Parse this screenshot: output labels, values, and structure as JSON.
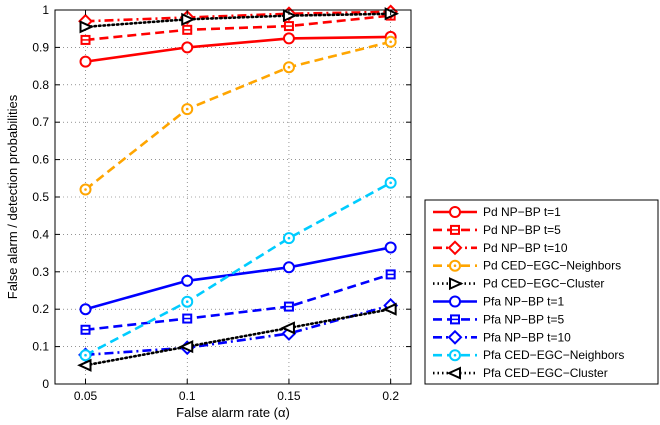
{
  "chart_data": {
    "type": "line",
    "xlabel": "False alarm rate (α)",
    "ylabel": "False alarm / detection probabilities",
    "xlim": [
      0.035,
      0.21
    ],
    "ylim": [
      0,
      1
    ],
    "x": [
      0.05,
      0.1,
      0.15,
      0.2
    ],
    "x_ticks": [
      "0.05",
      "0.1",
      "0.15",
      "0.2"
    ],
    "y_ticks": [
      "0",
      "0.1",
      "0.2",
      "0.3",
      "0.4",
      "0.5",
      "0.6",
      "0.7",
      "0.8",
      "0.9",
      "1"
    ],
    "grid": "dotted",
    "legend_position": "outside-right",
    "series": [
      {
        "name": "Pd NP−BP t=1",
        "values": [
          0.862,
          0.9,
          0.924,
          0.928
        ],
        "color": "#ff0000",
        "dash": "solid",
        "marker": "circle"
      },
      {
        "name": "Pd NP−BP t=5",
        "values": [
          0.92,
          0.947,
          0.957,
          0.985
        ],
        "color": "#ff0000",
        "dash": "dashed",
        "marker": "square"
      },
      {
        "name": "Pd NP−BP t=10",
        "values": [
          0.97,
          0.98,
          0.99,
          0.995
        ],
        "color": "#ff0000",
        "dash": "dashdot",
        "marker": "diamond"
      },
      {
        "name": "Pd CED−EGC−Neighbors",
        "values": [
          0.52,
          0.735,
          0.847,
          0.915
        ],
        "color": "#ffa500",
        "dash": "dashed",
        "marker": "circle-dot"
      },
      {
        "name": "Pd CED−EGC−Cluster",
        "values": [
          0.955,
          0.975,
          0.985,
          0.99
        ],
        "color": "#000000",
        "dash": "dotted",
        "marker": "triangle-right"
      },
      {
        "name": "Pfa NP−BP t=1",
        "values": [
          0.2,
          0.276,
          0.312,
          0.365
        ],
        "color": "#0000ff",
        "dash": "solid",
        "marker": "circle"
      },
      {
        "name": "Pfa NP−BP t=5",
        "values": [
          0.145,
          0.175,
          0.207,
          0.293
        ],
        "color": "#0000ff",
        "dash": "dashed",
        "marker": "square"
      },
      {
        "name": "Pfa NP−BP t=10",
        "values": [
          0.078,
          0.097,
          0.135,
          0.21
        ],
        "color": "#0000ff",
        "dash": "dashdot",
        "marker": "diamond"
      },
      {
        "name": "Pfa CED−EGC−Neighbors",
        "values": [
          0.077,
          0.22,
          0.39,
          0.538
        ],
        "color": "#00ccff",
        "dash": "dashed",
        "marker": "circle-dot"
      },
      {
        "name": "Pfa CED−EGC−Cluster",
        "values": [
          0.05,
          0.1,
          0.15,
          0.2
        ],
        "color": "#000000",
        "dash": "dotted",
        "marker": "triangle-left"
      }
    ]
  }
}
